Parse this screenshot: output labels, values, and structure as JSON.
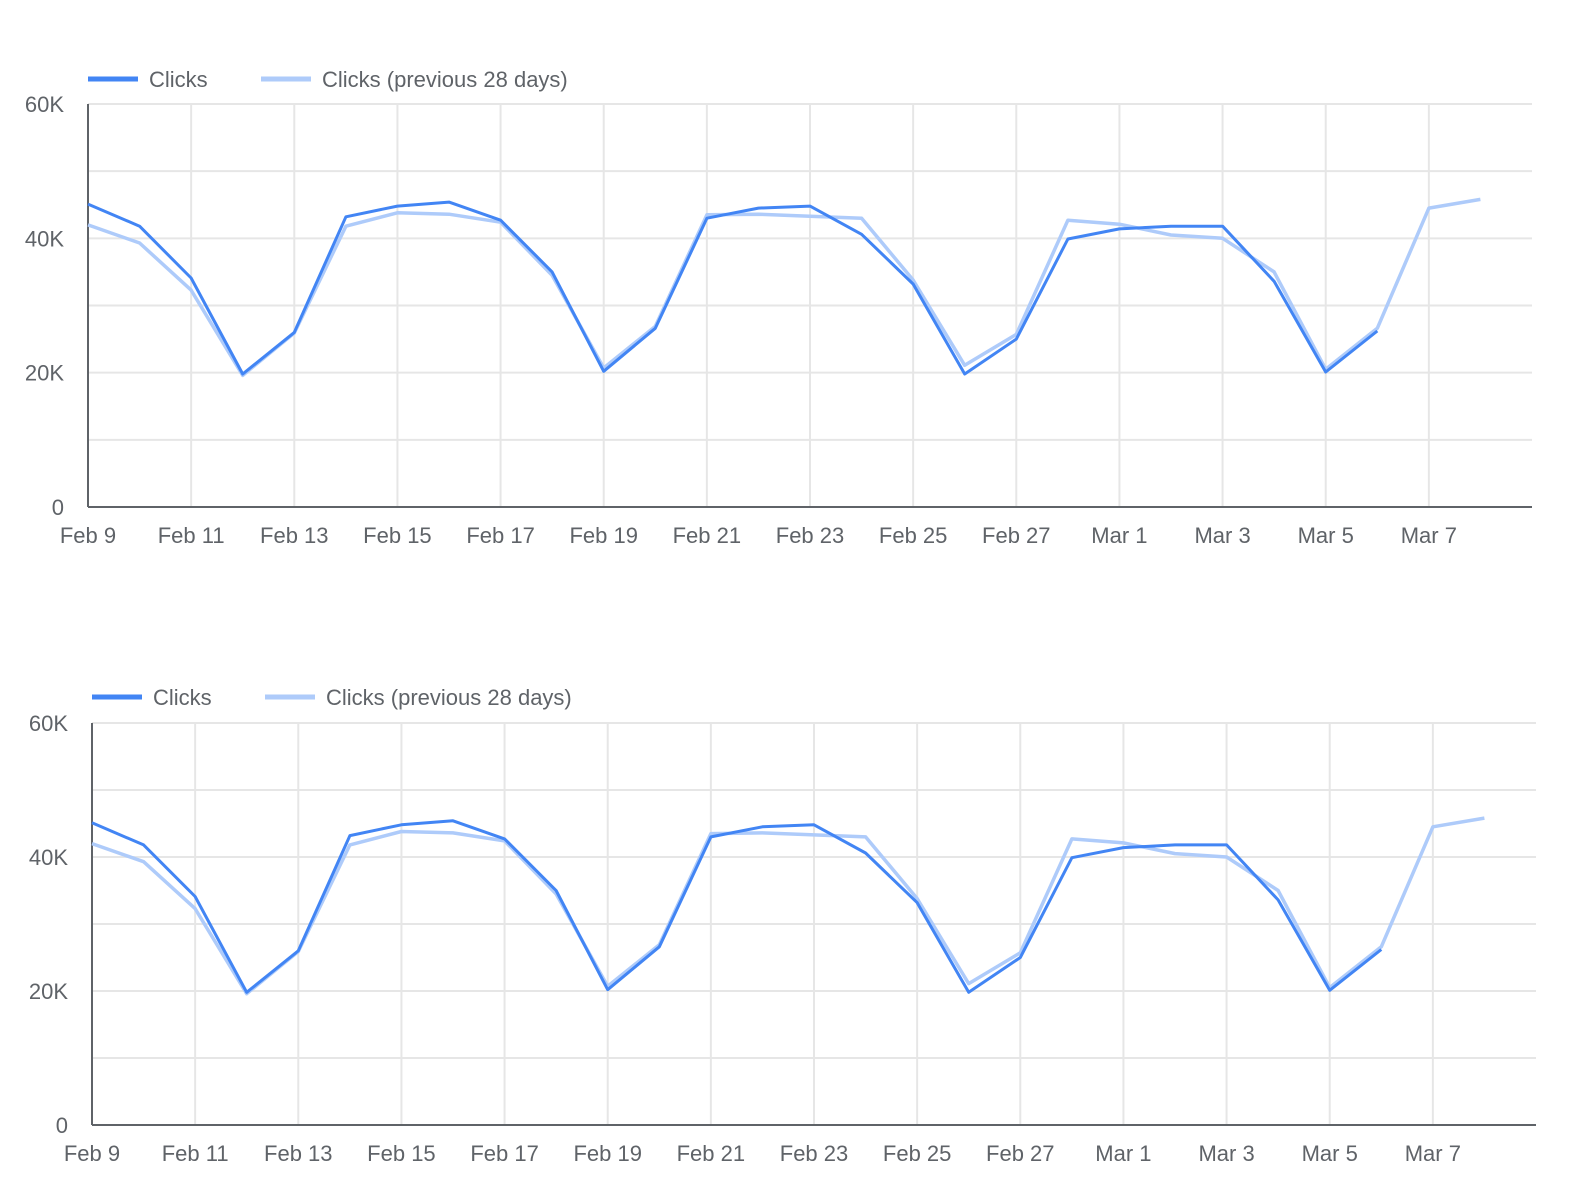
{
  "chart_data": [
    {
      "type": "line",
      "x": [
        "Feb 9",
        "Feb 10",
        "Feb 11",
        "Feb 12",
        "Feb 13",
        "Feb 14",
        "Feb 15",
        "Feb 16",
        "Feb 17",
        "Feb 18",
        "Feb 19",
        "Feb 20",
        "Feb 21",
        "Feb 22",
        "Feb 23",
        "Feb 24",
        "Feb 25",
        "Feb 26",
        "Feb 27",
        "Feb 28",
        "Mar 1",
        "Mar 2",
        "Mar 3",
        "Mar 4",
        "Mar 5",
        "Mar 6",
        "Mar 7",
        "Mar 8"
      ],
      "x_tick_labels": [
        "Feb 9",
        "Feb 11",
        "Feb 13",
        "Feb 15",
        "Feb 17",
        "Feb 19",
        "Feb 21",
        "Feb 23",
        "Feb 25",
        "Feb 27",
        "Mar 1",
        "Mar 3",
        "Mar 5",
        "Mar 7"
      ],
      "y_tick_labels": [
        "0",
        "20K",
        "40K",
        "60K"
      ],
      "ylim": [
        0,
        60000
      ],
      "grid": true,
      "legend": "top-left",
      "series": [
        {
          "name": "Clicks",
          "color": "#4285f4",
          "values": [
            45100,
            41800,
            34100,
            19800,
            26000,
            43200,
            44800,
            45400,
            42700,
            35000,
            20200,
            26600,
            43000,
            44500,
            44800,
            40600,
            33200,
            19800,
            25000,
            39900,
            41400,
            41800,
            41800,
            33600,
            20100,
            26200,
            null,
            null
          ]
        },
        {
          "name": "Clicks (previous 28 days)",
          "color": "#aecbfa",
          "values": [
            42000,
            39300,
            32300,
            19600,
            25900,
            41800,
            43800,
            43600,
            42400,
            34500,
            20700,
            26900,
            43500,
            43600,
            43300,
            43000,
            33800,
            21100,
            25700,
            42700,
            42100,
            40500,
            40000,
            35000,
            20500,
            26600,
            44500,
            45800
          ]
        }
      ]
    },
    {
      "type": "line",
      "x": [
        "Feb 9",
        "Feb 10",
        "Feb 11",
        "Feb 12",
        "Feb 13",
        "Feb 14",
        "Feb 15",
        "Feb 16",
        "Feb 17",
        "Feb 18",
        "Feb 19",
        "Feb 20",
        "Feb 21",
        "Feb 22",
        "Feb 23",
        "Feb 24",
        "Feb 25",
        "Feb 26",
        "Feb 27",
        "Feb 28",
        "Mar 1",
        "Mar 2",
        "Mar 3",
        "Mar 4",
        "Mar 5",
        "Mar 6",
        "Mar 7",
        "Mar 8"
      ],
      "x_tick_labels": [
        "Feb 9",
        "Feb 11",
        "Feb 13",
        "Feb 15",
        "Feb 17",
        "Feb 19",
        "Feb 21",
        "Feb 23",
        "Feb 25",
        "Feb 27",
        "Mar 1",
        "Mar 3",
        "Mar 5",
        "Mar 7"
      ],
      "y_tick_labels": [
        "0",
        "20K",
        "40K",
        "60K"
      ],
      "ylim": [
        0,
        60000
      ],
      "grid": true,
      "legend": "top-left",
      "series": [
        {
          "name": "Clicks",
          "color": "#4285f4",
          "values": [
            45100,
            41800,
            34100,
            19800,
            26000,
            43200,
            44800,
            45400,
            42700,
            35000,
            20200,
            26600,
            43000,
            44500,
            44800,
            40600,
            33200,
            19800,
            25000,
            39900,
            41400,
            41800,
            41800,
            33600,
            20100,
            26200,
            null,
            null
          ]
        },
        {
          "name": "Clicks (previous 28 days)",
          "color": "#aecbfa",
          "values": [
            42000,
            39300,
            32300,
            19600,
            25900,
            41800,
            43800,
            43600,
            42400,
            34500,
            20700,
            26900,
            43500,
            43600,
            43300,
            43000,
            33800,
            21100,
            25700,
            42700,
            42100,
            40500,
            40000,
            35000,
            20500,
            26600,
            44500,
            45800
          ]
        }
      ]
    }
  ]
}
